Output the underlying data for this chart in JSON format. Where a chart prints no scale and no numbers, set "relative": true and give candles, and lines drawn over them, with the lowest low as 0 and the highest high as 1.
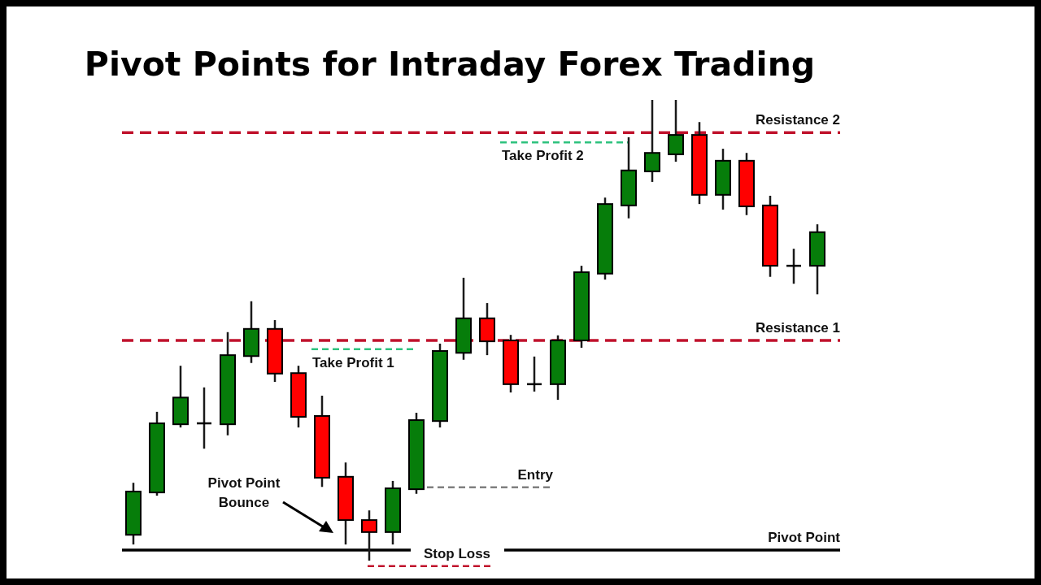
{
  "chart_data": {
    "type": "candlestick",
    "title": "Pivot Points for Intraday Forex Trading",
    "relative": true,
    "categories": [
      null,
      null,
      null,
      null,
      null,
      null,
      null,
      null,
      null,
      null,
      null,
      null,
      null,
      null,
      null,
      null,
      null,
      null,
      null,
      null,
      null,
      null,
      null,
      null,
      null,
      null,
      null,
      null,
      null,
      null
    ],
    "ohlc": [
      [
        0.056,
        0.169,
        0.035,
        0.15
      ],
      [
        0.148,
        0.323,
        0.141,
        0.298
      ],
      [
        0.296,
        0.423,
        0.289,
        0.354
      ],
      [
        0.298,
        0.376,
        0.243,
        0.298
      ],
      [
        0.296,
        0.496,
        0.272,
        0.446
      ],
      [
        0.444,
        0.563,
        0.429,
        0.503
      ],
      [
        0.503,
        0.522,
        0.388,
        0.406
      ],
      [
        0.407,
        0.423,
        0.289,
        0.312
      ],
      [
        0.314,
        0.358,
        0.16,
        0.18
      ],
      [
        0.182,
        0.213,
        0.035,
        0.088
      ],
      [
        0.088,
        0.109,
        0,
        0.062
      ],
      [
        0.062,
        0.173,
        0.035,
        0.157
      ],
      [
        0.155,
        0.321,
        0.145,
        0.305
      ],
      [
        0.303,
        0.471,
        0.289,
        0.455
      ],
      [
        0.451,
        0.614,
        0.436,
        0.526
      ],
      [
        0.526,
        0.559,
        0.446,
        0.476
      ],
      [
        0.478,
        0.49,
        0.365,
        0.383
      ],
      [
        0.383,
        0.443,
        0.367,
        0.383
      ],
      [
        0.383,
        0.489,
        0.349,
        0.478
      ],
      [
        0.478,
        0.64,
        0.462,
        0.626
      ],
      [
        0.623,
        0.788,
        0.61,
        0.774
      ],
      [
        0.771,
        0.919,
        0.743,
        0.847
      ],
      [
        0.845,
        1,
        0.822,
        0.885
      ],
      [
        0.882,
        1,
        0.866,
        0.924
      ],
      [
        0.924,
        0.952,
        0.774,
        0.794
      ],
      [
        0.794,
        0.894,
        0.762,
        0.868
      ],
      [
        0.868,
        0.885,
        0.75,
        0.769
      ],
      [
        0.771,
        0.792,
        0.616,
        0.64
      ],
      [
        0.64,
        0.677,
        0.601,
        0.64
      ],
      [
        0.64,
        0.73,
        0.578,
        0.713
      ]
    ],
    "colors": [
      "#067d0a",
      "#067d0a",
      "#067d0a",
      "#000000",
      "#067d0a",
      "#067d0a",
      "#ff0000",
      "#ff0000",
      "#ff0000",
      "#ff0000",
      "#ff0000",
      "#067d0a",
      "#067d0a",
      "#067d0a",
      "#067d0a",
      "#ff0000",
      "#ff0000",
      "#000000",
      "#067d0a",
      "#067d0a",
      "#067d0a",
      "#067d0a",
      "#067d0a",
      "#067d0a",
      "#ff0000",
      "#067d0a",
      "#ff0000",
      "#ff0000",
      "#000000",
      "#067d0a"
    ],
    "ref_lines": [
      {
        "axis": "y",
        "value": 0.929,
        "label": "Resistance 2",
        "color": "#c0122c",
        "line_style": "dashed"
      },
      {
        "axis": "y",
        "value": 0.478,
        "label": "Resistance 1",
        "color": "#c0122c",
        "line_style": "dashed"
      },
      {
        "axis": "y",
        "value": 0.023,
        "label": "Pivot Point",
        "color": "#000000",
        "line_style": "solid"
      },
      {
        "axis": "y",
        "value": 0.459,
        "label": "Take Profit  1",
        "color": "#2ec27e",
        "line_style": "dashed"
      },
      {
        "axis": "y",
        "value": 0.908,
        "label": "Take Profit  2",
        "color": "#2ec27e",
        "line_style": "dashed"
      },
      {
        "axis": "y",
        "value": 0.159,
        "label": "Entry",
        "color": "#808080",
        "line_style": "dashed"
      },
      {
        "axis": "y",
        "value": -0.012,
        "label": "Stop Loss",
        "color": "#c0122c",
        "line_style": "dashed"
      }
    ],
    "annotations": [
      "Pivot Point Bounce"
    ]
  }
}
